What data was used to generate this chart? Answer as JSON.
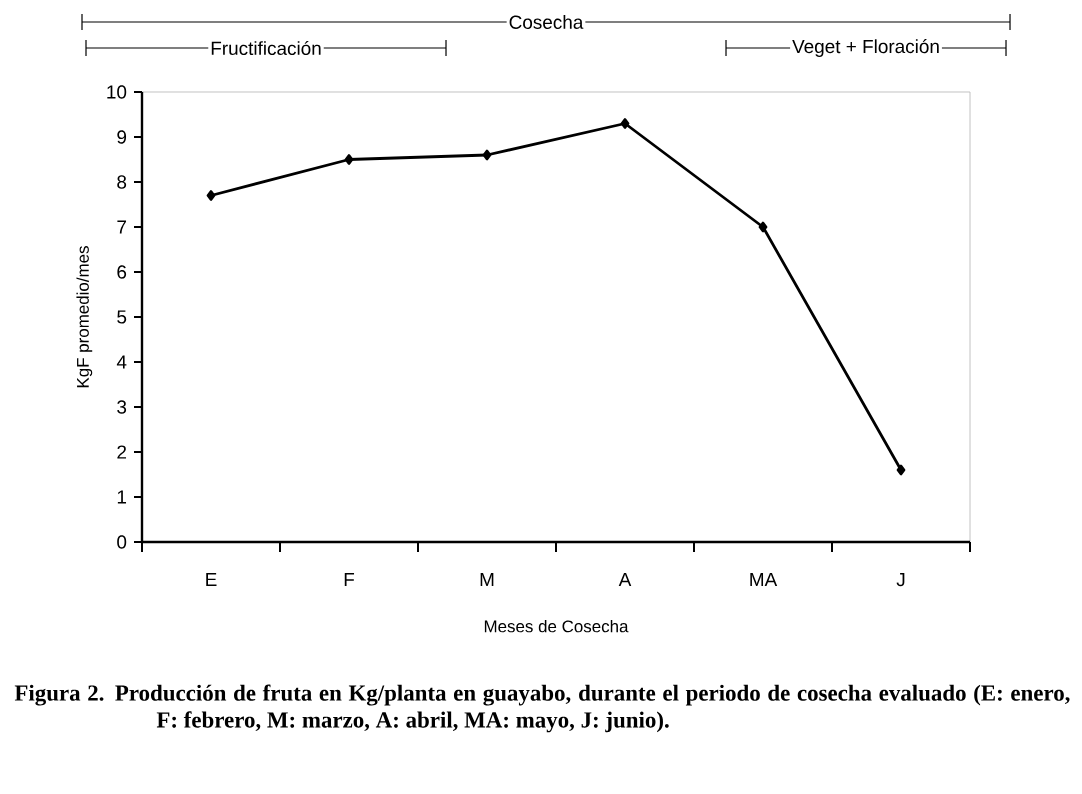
{
  "chart_data": {
    "type": "line",
    "xlabel": "Meses de Cosecha",
    "ylabel": "KgF promedio/mes",
    "categories": [
      "E",
      "F",
      "M",
      "A",
      "MA",
      "J"
    ],
    "series": [
      {
        "color": "#000000",
        "values": [
          7.7,
          8.5,
          8.6,
          9.3,
          7.0,
          1.6
        ]
      }
    ],
    "ylim": [
      0,
      10
    ],
    "yticks": [
      0,
      1,
      2,
      3,
      4,
      5,
      6,
      7,
      8,
      9,
      10
    ],
    "marker": "diamond",
    "line_style": "solid",
    "annotations": [
      "Cosecha",
      "Fructificación",
      "Veget + Floración",
      "Figura 2. Producción de fruta en Kg/planta en guayabo, durante el periodo de cosecha evaluado (E: enero, F: febrero, M: marzo, A: abril, MA: mayo, J: junio)."
    ]
  }
}
